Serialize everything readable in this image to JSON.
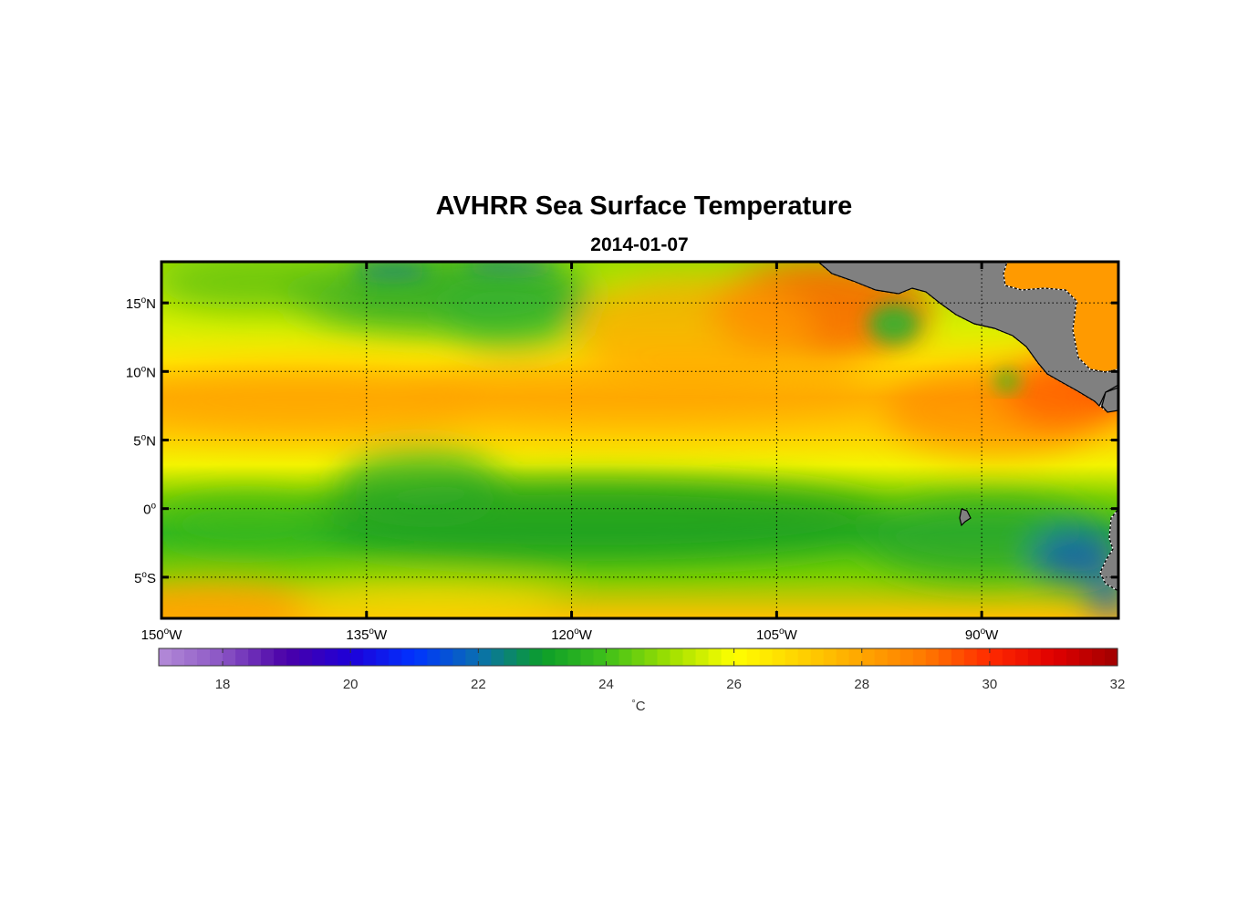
{
  "title": "AVHRR Sea Surface Temperature",
  "subtitle": "2014-01-07",
  "map": {
    "lon_range": [
      -150,
      -80
    ],
    "lat_range": [
      -8,
      18
    ],
    "lon_ticks": [
      {
        "value": -150,
        "deg": "150",
        "sup": "o",
        "hem": "W"
      },
      {
        "value": -135,
        "deg": "135",
        "sup": "o",
        "hem": "W"
      },
      {
        "value": -120,
        "deg": "120",
        "sup": "o",
        "hem": "W"
      },
      {
        "value": -105,
        "deg": "105",
        "sup": "o",
        "hem": "W"
      },
      {
        "value": -90,
        "deg": "90",
        "sup": "o",
        "hem": "W"
      }
    ],
    "lat_ticks": [
      {
        "value": 15,
        "deg": "15",
        "sup": "o",
        "hem": "N"
      },
      {
        "value": 10,
        "deg": "10",
        "sup": "o",
        "hem": "N"
      },
      {
        "value": 5,
        "deg": "5",
        "sup": "o",
        "hem": "N"
      },
      {
        "value": 0,
        "deg": "0",
        "sup": "o",
        "hem": ""
      },
      {
        "value": -5,
        "deg": "5",
        "sup": "o",
        "hem": "S"
      }
    ],
    "grid": true,
    "land_color": "#808080",
    "ocean_field_description_colors": {
      "cool": "#1fa81f",
      "mid": "#ffff00",
      "warm": "#ff9000",
      "hot": "#ff2000"
    }
  },
  "colorbar": {
    "range": [
      17,
      32
    ],
    "ticks": [
      18,
      20,
      22,
      24,
      26,
      28,
      30,
      32
    ],
    "tick_labels": [
      "18",
      "20",
      "22",
      "24",
      "26",
      "28",
      "30",
      "32"
    ],
    "unit_deg": "°",
    "unit": "C",
    "stops": [
      {
        "value": 17,
        "color": "#b48cd8"
      },
      {
        "value": 18,
        "color": "#8a54c4"
      },
      {
        "value": 19,
        "color": "#4a00a8"
      },
      {
        "value": 20,
        "color": "#1e00d8"
      },
      {
        "value": 21,
        "color": "#0033ff"
      },
      {
        "value": 22,
        "color": "#0a6fb0"
      },
      {
        "value": 23,
        "color": "#0c9e2a"
      },
      {
        "value": 24,
        "color": "#3fc01a"
      },
      {
        "value": 25,
        "color": "#9fe000"
      },
      {
        "value": 26,
        "color": "#ffff00"
      },
      {
        "value": 27,
        "color": "#ffd400"
      },
      {
        "value": 28,
        "color": "#ffa500"
      },
      {
        "value": 29,
        "color": "#ff7800"
      },
      {
        "value": 30,
        "color": "#ff2a00"
      },
      {
        "value": 31,
        "color": "#e00000"
      },
      {
        "value": 32,
        "color": "#a00000"
      }
    ]
  }
}
